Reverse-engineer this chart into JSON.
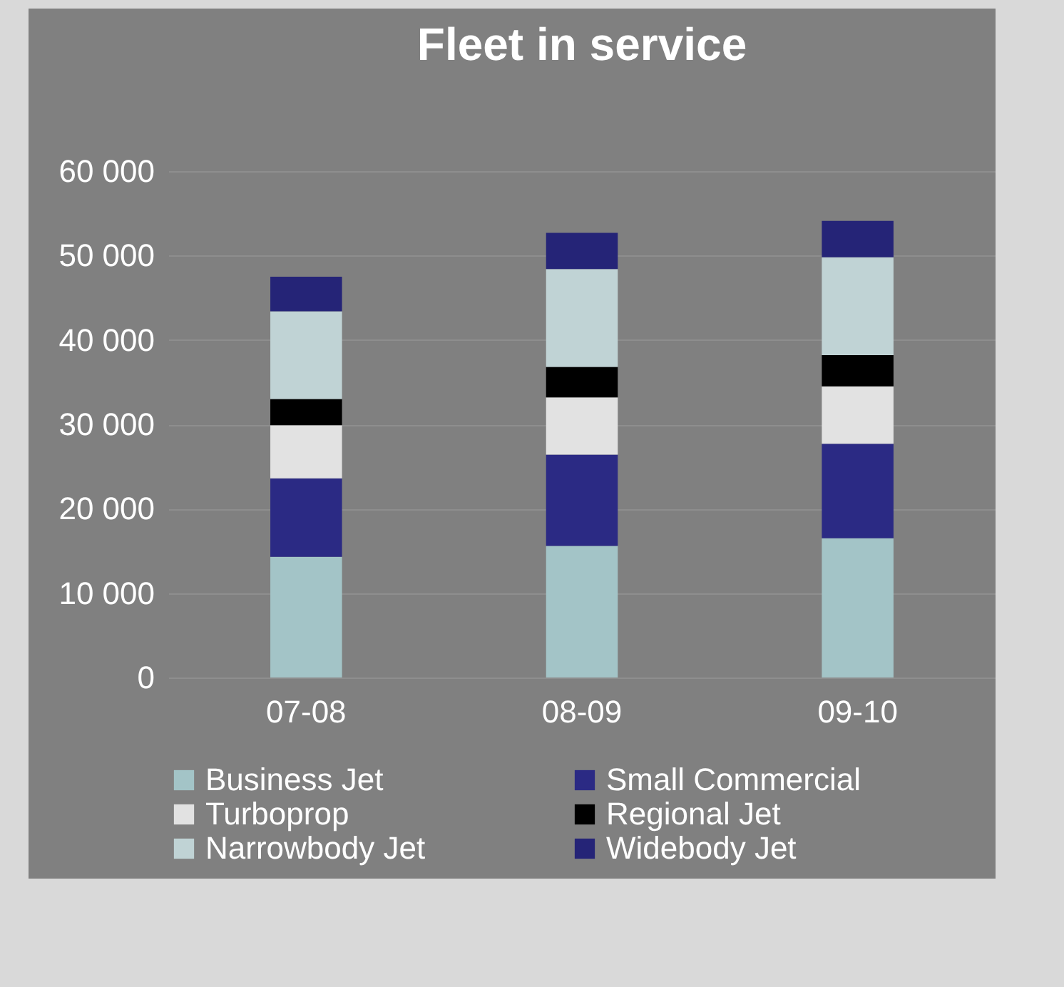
{
  "chart_data": {
    "type": "bar",
    "title": "Fleet in service",
    "categories": [
      "07-08",
      "08-09",
      "09-10"
    ],
    "stacked": true,
    "series": [
      {
        "name": "Business Jet",
        "color": "#a3c4c7",
        "values": [
          14300,
          15600,
          16500
        ]
      },
      {
        "name": "Small Commercial",
        "color": "#2b2a84",
        "values": [
          9300,
          10800,
          11200
        ]
      },
      {
        "name": "Turboprop",
        "color": "#e2e2e2",
        "values": [
          6300,
          6800,
          6800
        ]
      },
      {
        "name": "Regional Jet",
        "color": "#000000",
        "values": [
          3100,
          3600,
          3700
        ]
      },
      {
        "name": "Narrowbody Jet",
        "color": "#c0d3d5",
        "values": [
          10400,
          11600,
          11600
        ]
      },
      {
        "name": "Widebody Jet",
        "color": "#252477",
        "values": [
          4100,
          4300,
          4300
        ]
      }
    ],
    "ylim": [
      0,
      60000
    ],
    "yticks": [
      {
        "value": 0,
        "label": "0"
      },
      {
        "value": 10000,
        "label": "10 000"
      },
      {
        "value": 20000,
        "label": "20 000"
      },
      {
        "value": 30000,
        "label": "30 000"
      },
      {
        "value": 40000,
        "label": "40 000"
      },
      {
        "value": 50000,
        "label": "50 000"
      },
      {
        "value": 60000,
        "label": "60 000"
      }
    ],
    "grid": "y",
    "legend": "bottom"
  }
}
